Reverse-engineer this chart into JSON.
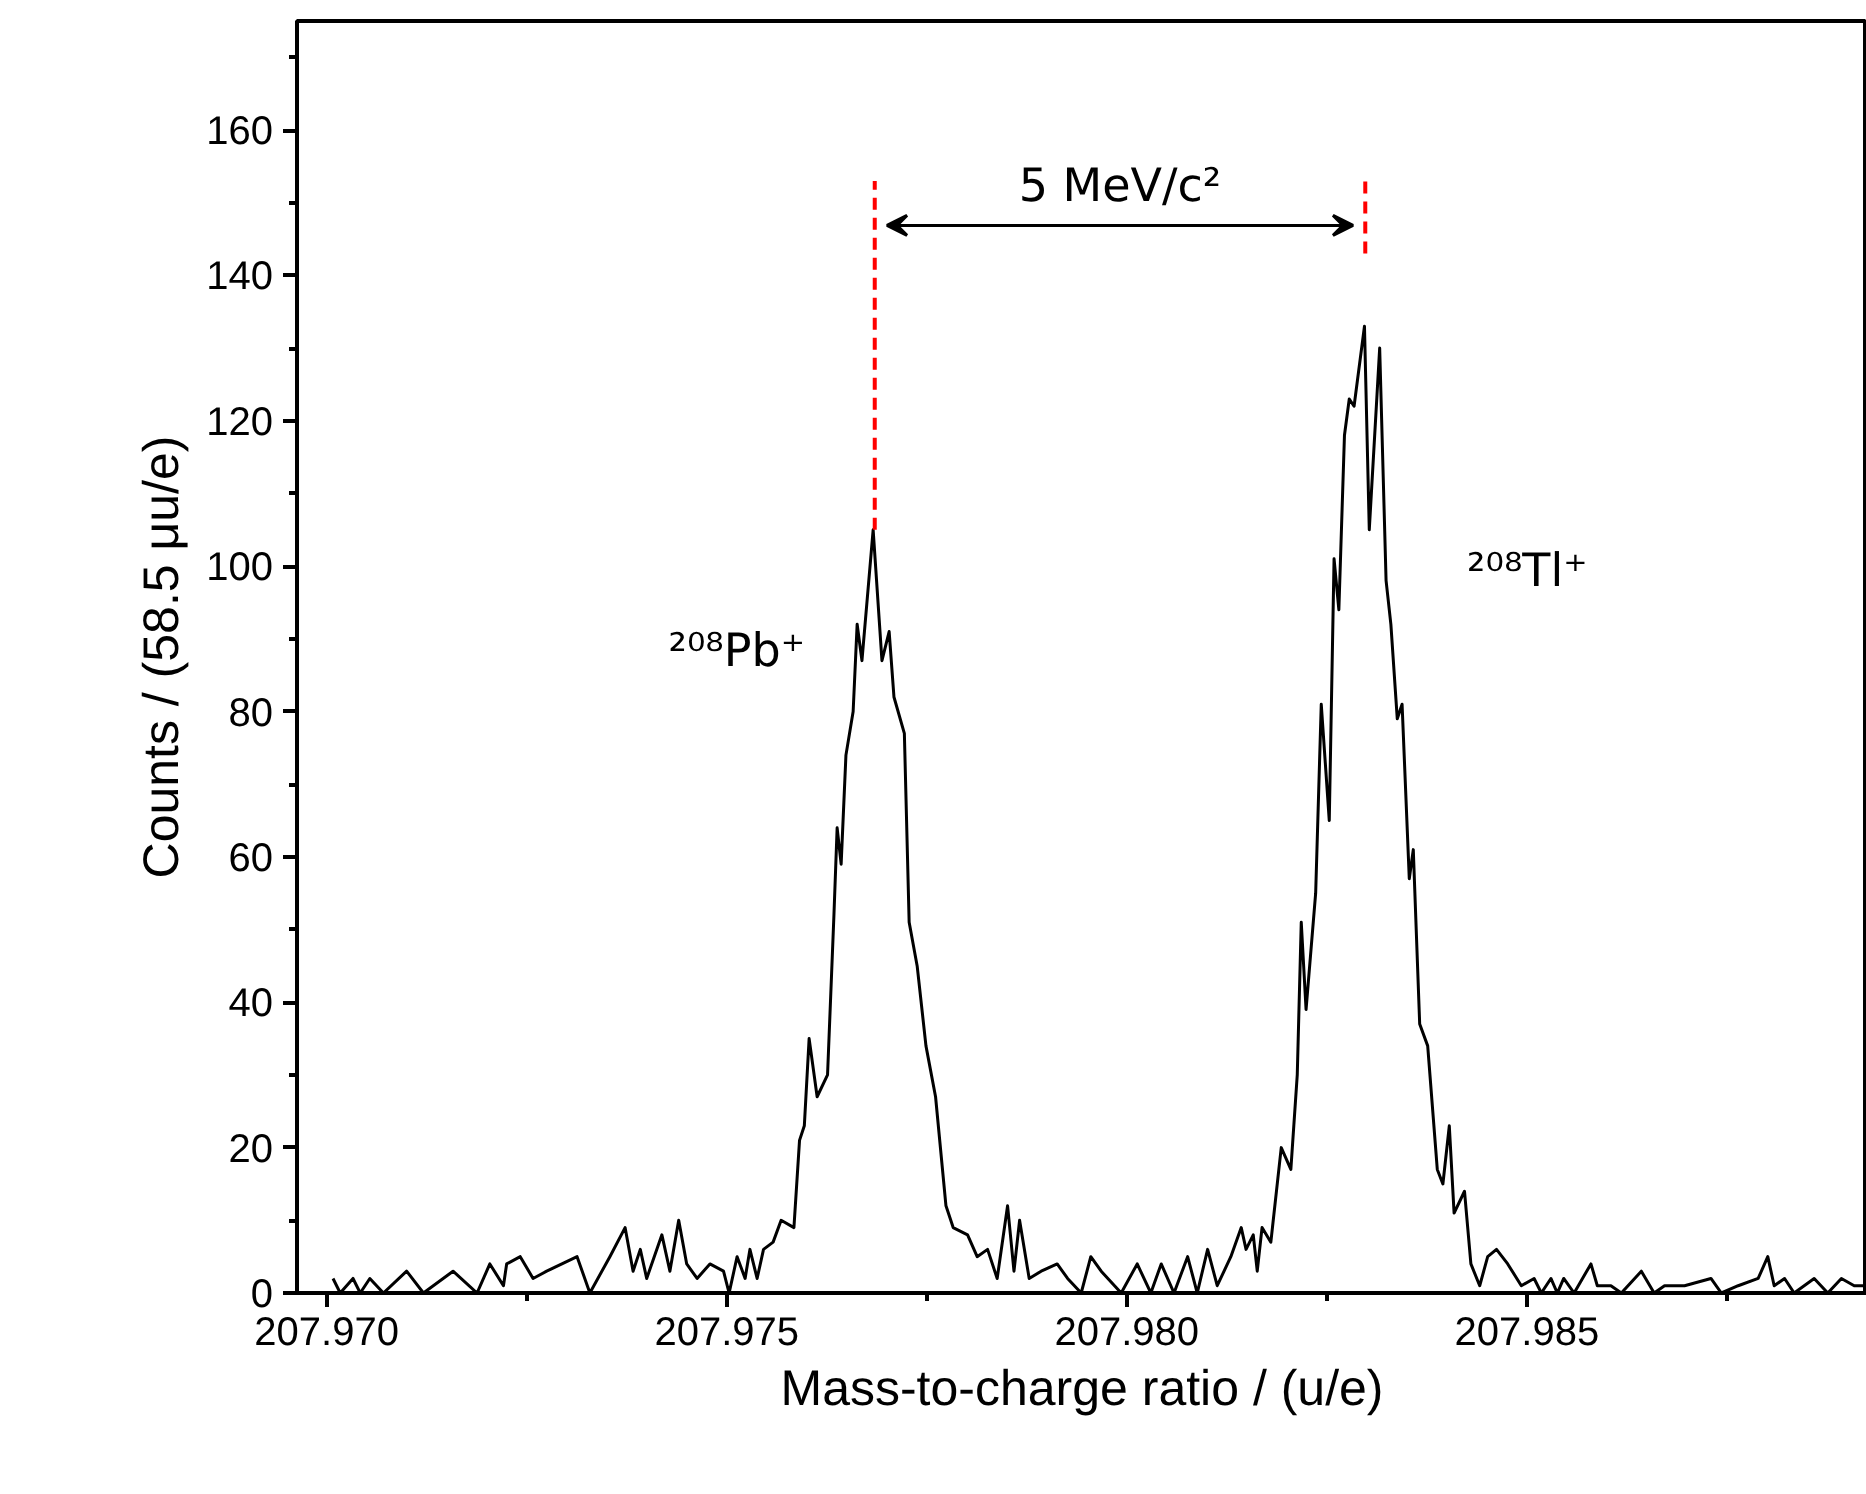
{
  "chart_data": {
    "type": "line",
    "xlabel": "Mass-to-charge ratio / (u/e)",
    "ylabel": "Counts / (58.5 μu/e)",
    "xlim": [
      207.96963,
      207.98925
    ],
    "ylim": [
      0,
      175
    ],
    "xticks": [
      {
        "value": 207.97,
        "label": "207.970"
      },
      {
        "value": 207.975,
        "label": "207.975"
      },
      {
        "value": 207.98,
        "label": "207.980"
      },
      {
        "value": 207.985,
        "label": "207.985"
      }
    ],
    "yticks": [
      0,
      20,
      40,
      60,
      80,
      100,
      120,
      140,
      160
    ],
    "grid": false,
    "marker": "none",
    "annotations": [
      "²⁰⁸Pb⁺",
      "²⁰⁸Tl⁺",
      "5 MeV/c²"
    ],
    "series": [
      {
        "color": "#000000",
        "line_style": "solid",
        "x": [
          207.97008,
          207.97017,
          207.97033,
          207.97042,
          207.97054,
          207.97071,
          207.971,
          207.97121,
          207.97158,
          207.97188,
          207.97204,
          207.97221,
          207.97225,
          207.97242,
          207.97258,
          207.97275,
          207.97313,
          207.97329,
          207.97354,
          207.97373,
          207.97383,
          207.97392,
          207.974,
          207.97419,
          207.97429,
          207.9744,
          207.9745,
          207.97463,
          207.97479,
          207.97496,
          207.97503,
          207.97513,
          207.97523,
          207.97529,
          207.97538,
          207.97546,
          207.97558,
          207.97568,
          207.97584,
          207.97591,
          207.97597,
          207.97603,
          207.97613,
          207.97626,
          207.97634,
          207.97638,
          207.97643,
          207.97649,
          207.97658,
          207.97663,
          207.97669,
          207.97683,
          207.97694,
          207.97703,
          207.97709,
          207.97722,
          207.97728,
          207.97738,
          207.97749,
          207.97761,
          207.97774,
          207.97783,
          207.97801,
          207.97813,
          207.97826,
          207.97838,
          207.97851,
          207.97859,
          207.97866,
          207.97878,
          207.97893,
          207.97913,
          207.97926,
          207.97943,
          207.97955,
          207.97968,
          207.97993,
          207.98013,
          207.9803,
          207.98043,
          207.98059,
          207.98076,
          207.98088,
          207.98101,
          207.98113,
          207.9813,
          207.98143,
          207.98149,
          207.98158,
          207.98163,
          207.98169,
          207.9818,
          207.98193,
          207.98205,
          207.98213,
          207.98218,
          207.98224,
          207.98236,
          207.98243,
          207.98253,
          207.98259,
          207.98265,
          207.98272,
          207.98278,
          207.98284,
          207.98297,
          207.98303,
          207.98316,
          207.98324,
          207.9833,
          207.98338,
          207.98344,
          207.98353,
          207.98358,
          207.98366,
          207.98376,
          207.98388,
          207.98395,
          207.98403,
          207.98409,
          207.98422,
          207.9843,
          207.98441,
          207.98451,
          207.98462,
          207.98476,
          207.98493,
          207.98509,
          207.98518,
          207.9853,
          207.98538,
          207.98546,
          207.98559,
          207.9858,
          207.98588,
          207.98605,
          207.98618,
          207.98643,
          207.98659,
          207.98672,
          207.98697,
          207.9873,
          207.98743,
          207.98764,
          207.98789,
          207.98801,
          207.98809,
          207.98822,
          207.98834,
          207.98859,
          207.98876,
          207.98893,
          207.98909,
          207.98924
        ],
        "values": [
          2,
          0,
          2,
          0,
          2,
          0,
          3,
          0,
          3,
          0,
          4,
          1,
          4,
          5,
          2,
          3,
          5,
          0,
          5,
          9,
          3,
          6,
          2,
          8,
          3,
          10,
          4,
          2,
          4,
          3,
          0,
          5,
          2,
          6,
          2,
          6,
          7,
          10,
          9,
          21,
          23,
          35,
          27,
          30,
          52,
          64,
          59,
          74,
          80,
          92,
          87,
          105,
          87,
          91,
          82,
          77,
          51,
          45,
          34,
          27,
          12,
          9,
          8,
          5,
          6,
          2,
          12,
          3,
          10,
          2,
          3,
          4,
          2,
          0,
          5,
          3,
          0,
          4,
          0,
          4,
          0,
          5,
          0,
          6,
          1,
          5,
          9,
          6,
          8,
          3,
          9,
          7,
          20,
          17,
          30,
          51,
          39,
          55,
          81,
          65,
          101,
          94,
          118,
          123,
          122,
          133,
          105,
          130,
          98,
          92,
          79,
          81,
          57,
          61,
          37,
          34,
          17,
          15,
          23,
          11,
          14,
          4,
          1,
          5,
          6,
          4,
          1,
          2,
          0,
          2,
          0,
          2,
          0,
          4,
          1,
          1,
          0,
          3,
          0,
          1,
          1,
          2,
          0,
          1,
          2,
          5,
          1,
          2,
          0,
          2,
          0,
          2,
          1,
          1
        ]
      },
      {
        "color": "#ff0000",
        "line_style": "dashed",
        "x": [
          207.97685,
          207.97685
        ],
        "values": [
          105,
          153
        ]
      },
      {
        "color": "#ff0000",
        "line_style": "dashed",
        "x": [
          207.98298,
          207.98298
        ],
        "values": [
          143,
          153
        ]
      }
    ]
  }
}
